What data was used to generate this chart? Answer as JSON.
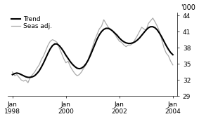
{
  "ylabel_right": "'000",
  "ylim": [
    29,
    44.5
  ],
  "yticks": [
    29,
    32,
    35,
    38,
    41,
    44
  ],
  "xlim": [
    -2,
    74
  ],
  "xtick_labels": [
    "Jan\n1998",
    "Jan\n2000",
    "Jan\n2002",
    "Jan\n2004"
  ],
  "xtick_positions": [
    0,
    24,
    48,
    72
  ],
  "legend_entries": [
    "Trend",
    "Seas adj."
  ],
  "trend_color": "#000000",
  "seas_color": "#aaaaaa",
  "trend_linewidth": 1.5,
  "seas_linewidth": 0.9,
  "background_color": "#ffffff",
  "trend_data": [
    33.0,
    33.2,
    33.3,
    33.2,
    33.0,
    32.8,
    32.6,
    32.5,
    32.5,
    32.6,
    32.8,
    33.2,
    33.7,
    34.4,
    35.2,
    36.1,
    37.0,
    37.8,
    38.4,
    38.7,
    38.7,
    38.4,
    37.9,
    37.3,
    36.6,
    36.0,
    35.4,
    34.9,
    34.5,
    34.2,
    34.1,
    34.2,
    34.5,
    35.0,
    35.7,
    36.6,
    37.6,
    38.6,
    39.6,
    40.4,
    41.0,
    41.4,
    41.6,
    41.6,
    41.4,
    41.1,
    40.7,
    40.3,
    39.8,
    39.4,
    39.1,
    38.9,
    38.8,
    38.8,
    38.9,
    39.1,
    39.4,
    39.8,
    40.3,
    40.8,
    41.3,
    41.7,
    41.9,
    41.9,
    41.7,
    41.3,
    40.7,
    40.0,
    39.2,
    38.4,
    37.7,
    37.1,
    36.7
  ],
  "seas_data": [
    33.5,
    32.8,
    33.0,
    32.5,
    32.0,
    31.8,
    32.0,
    31.5,
    32.5,
    33.0,
    33.5,
    34.2,
    34.8,
    35.8,
    36.5,
    37.5,
    38.5,
    39.2,
    39.5,
    39.3,
    39.0,
    38.0,
    37.0,
    36.0,
    35.2,
    35.5,
    34.5,
    33.8,
    33.2,
    32.8,
    33.0,
    33.5,
    34.2,
    34.8,
    35.8,
    37.0,
    38.2,
    39.5,
    40.5,
    41.5,
    42.0,
    43.2,
    42.5,
    41.8,
    41.5,
    41.0,
    40.5,
    39.8,
    39.2,
    39.0,
    38.5,
    38.2,
    38.5,
    38.5,
    38.8,
    39.5,
    40.2,
    41.0,
    41.8,
    41.5,
    41.2,
    42.5,
    43.0,
    43.5,
    42.8,
    42.0,
    41.0,
    39.5,
    38.0,
    37.0,
    36.5,
    35.5,
    34.8
  ]
}
